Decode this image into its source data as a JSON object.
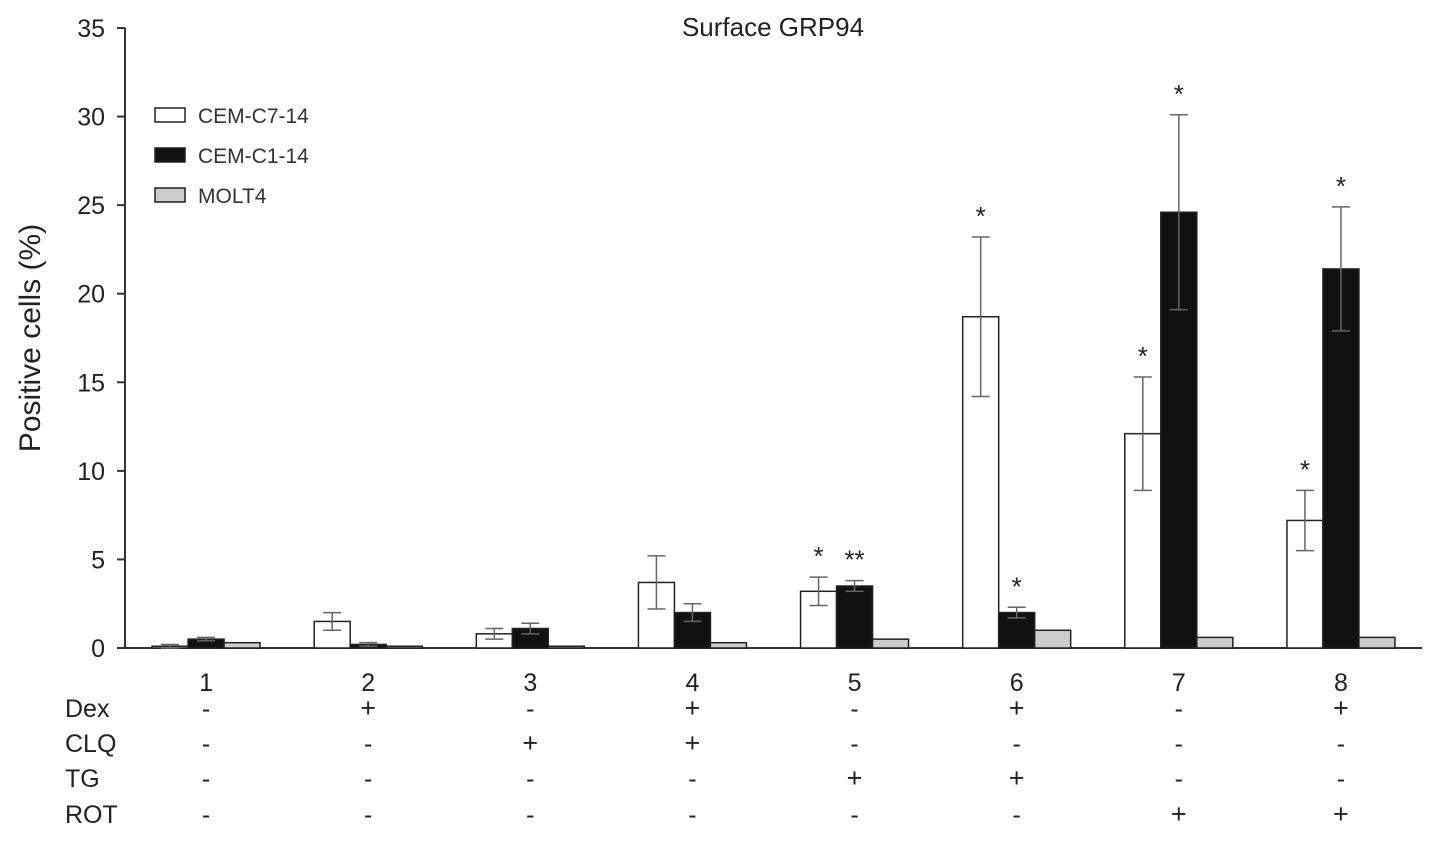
{
  "chart_data": {
    "type": "bar",
    "title": "Surface GRP94",
    "ylabel": "Positive cells (%)",
    "xlabel": "",
    "ylim": [
      0,
      35
    ],
    "yticks": [
      0,
      5,
      10,
      15,
      20,
      25,
      30,
      35
    ],
    "grid": false,
    "legend_position": "top-left",
    "categories": [
      "1",
      "2",
      "3",
      "4",
      "5",
      "6",
      "7",
      "8"
    ],
    "series": [
      {
        "name": "CEM-C7-14",
        "color": "#ffffff",
        "values": [
          0.1,
          1.5,
          0.8,
          3.7,
          3.2,
          18.7,
          12.1,
          7.2
        ],
        "errors": [
          0.1,
          0.5,
          0.3,
          1.5,
          0.8,
          4.5,
          3.2,
          1.7
        ],
        "significance": [
          "",
          "",
          "",
          "",
          "*",
          "*",
          "*",
          "*"
        ]
      },
      {
        "name": "CEM-C1-14",
        "color": "#111111",
        "values": [
          0.5,
          0.2,
          1.1,
          2.0,
          3.5,
          2.0,
          24.6,
          21.4
        ],
        "errors": [
          0.1,
          0.1,
          0.3,
          0.5,
          0.3,
          0.3,
          5.5,
          3.5
        ],
        "significance": [
          "",
          "",
          "",
          "",
          "**",
          "*",
          "*",
          "*"
        ]
      },
      {
        "name": "MOLT4",
        "color": "#cccccc",
        "values": [
          0.3,
          0.1,
          0.1,
          0.3,
          0.5,
          1.0,
          0.6,
          0.6
        ],
        "errors": [
          0,
          0,
          0,
          0,
          0,
          0,
          0,
          0
        ],
        "significance": [
          "",
          "",
          "",
          "",
          "",
          "",
          "",
          ""
        ]
      }
    ],
    "treatments": [
      {
        "name": "Dex",
        "signs": [
          "-",
          "+",
          "-",
          "+",
          "-",
          "+",
          "-",
          "+"
        ]
      },
      {
        "name": "CLQ",
        "signs": [
          "-",
          "-",
          "+",
          "+",
          "-",
          "-",
          "-",
          "-"
        ]
      },
      {
        "name": "TG",
        "signs": [
          "-",
          "-",
          "-",
          "-",
          "+",
          "+",
          "-",
          "-"
        ]
      },
      {
        "name": "ROT",
        "signs": [
          "-",
          "-",
          "-",
          "-",
          "-",
          "-",
          "+",
          "+"
        ]
      }
    ]
  }
}
